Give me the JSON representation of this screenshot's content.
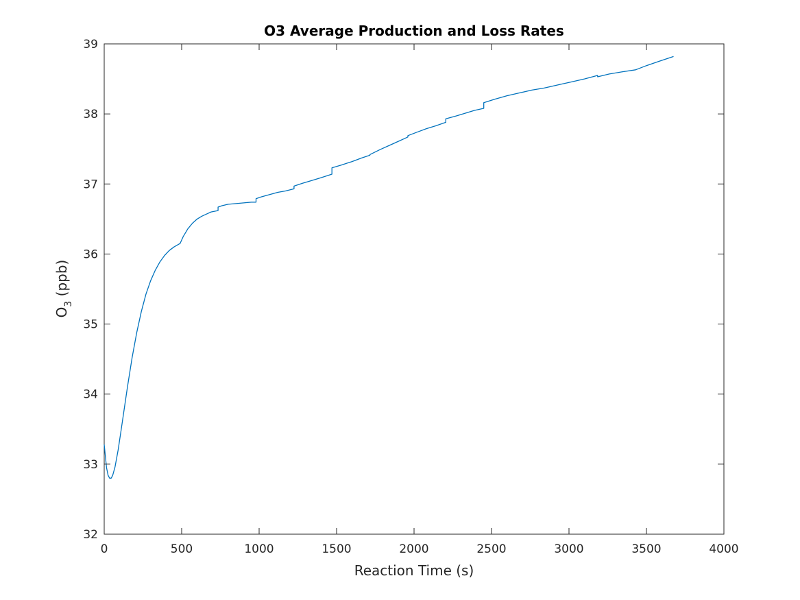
{
  "chart_data": {
    "type": "line",
    "title": "O3 Average Production and Loss Rates",
    "xlabel": "Reaction Time (s)",
    "ylabel_main": "O",
    "ylabel_sub": "3",
    "ylabel_unit": " (ppb)",
    "xlim": [
      0,
      4000
    ],
    "ylim": [
      32,
      39
    ],
    "xticks": [
      0,
      500,
      1000,
      1500,
      2000,
      2500,
      3000,
      3500,
      4000
    ],
    "yticks": [
      32,
      33,
      34,
      35,
      36,
      37,
      38,
      39
    ],
    "grid": false,
    "line_color": "#0072BD",
    "series": [
      {
        "x": [
          0,
          15,
          25,
          35,
          45,
          55,
          70,
          90,
          110,
          130,
          150,
          180,
          210,
          240,
          270,
          300,
          330,
          360,
          390,
          420,
          450,
          490,
          490,
          510,
          540,
          570,
          600,
          630,
          660,
          690,
          735,
          735,
          760,
          800,
          850,
          900,
          950,
          980,
          980,
          1020,
          1070,
          1120,
          1170,
          1225,
          1225,
          1280,
          1340,
          1400,
          1470,
          1470,
          1530,
          1600,
          1660,
          1715,
          1715,
          1780,
          1840,
          1900,
          1960,
          1960,
          2020,
          2080,
          2140,
          2205,
          2205,
          2270,
          2330,
          2390,
          2450,
          2450,
          2520,
          2600,
          2680,
          2760,
          2840,
          2940,
          2940,
          3020,
          3100,
          3185,
          3185,
          3260,
          3340,
          3430,
          3430,
          3500,
          3580,
          3675
        ],
        "y": [
          33.28,
          32.95,
          32.84,
          32.8,
          32.8,
          32.84,
          32.96,
          33.2,
          33.5,
          33.8,
          34.1,
          34.52,
          34.88,
          35.18,
          35.43,
          35.62,
          35.77,
          35.89,
          35.98,
          36.05,
          36.1,
          36.15,
          36.15,
          36.25,
          36.36,
          36.44,
          36.5,
          36.54,
          36.57,
          36.6,
          36.62,
          36.67,
          36.69,
          36.71,
          36.72,
          36.73,
          36.74,
          36.74,
          36.79,
          36.82,
          36.85,
          36.88,
          36.9,
          36.93,
          36.97,
          37.01,
          37.05,
          37.09,
          37.14,
          37.23,
          37.27,
          37.32,
          37.37,
          37.41,
          37.42,
          37.49,
          37.55,
          37.61,
          37.67,
          37.69,
          37.74,
          37.79,
          37.83,
          37.88,
          37.93,
          37.97,
          38.01,
          38.05,
          38.08,
          38.16,
          38.21,
          38.26,
          38.3,
          38.34,
          38.37,
          38.42,
          38.42,
          38.46,
          38.5,
          38.55,
          38.53,
          38.57,
          38.6,
          38.63,
          38.63,
          38.69,
          38.75,
          38.82
        ]
      }
    ]
  }
}
